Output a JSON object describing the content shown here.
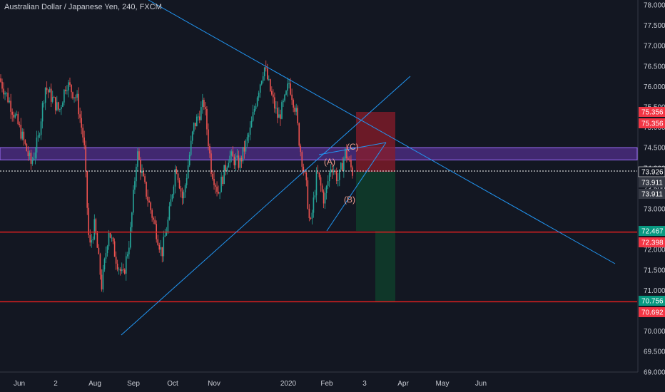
{
  "header": {
    "title": "Australian Dollar / Japanese Yen, 240, FXCM"
  },
  "chart_data": {
    "type": "candlestick",
    "title": "Australian Dollar / Japanese Yen, 240, FXCM",
    "ylim": [
      69.0,
      78.2
    ],
    "y_ticks": [
      "78.000",
      "77.500",
      "77.000",
      "76.500",
      "76.000",
      "75.500",
      "75.000",
      "74.500",
      "74.000",
      "73.500",
      "73.000",
      "72.500",
      "72.000",
      "71.500",
      "71.000",
      "70.500",
      "70.000",
      "69.500",
      "69.000"
    ],
    "x_labels": [
      "Jun",
      "2",
      "Aug",
      "Sep",
      "Oct",
      "Nov",
      "2020",
      "Feb",
      "3",
      "Apr",
      "May",
      "Jun"
    ],
    "price_path": [
      [
        0,
        76.2
      ],
      [
        0.03,
        75.6
      ],
      [
        0.06,
        74.9
      ],
      [
        0.09,
        74.1
      ],
      [
        0.11,
        74.7
      ],
      [
        0.13,
        76.0
      ],
      [
        0.17,
        75.4
      ],
      [
        0.19,
        76.1
      ],
      [
        0.22,
        75.7
      ],
      [
        0.24,
        74.6
      ],
      [
        0.255,
        72.0
      ],
      [
        0.27,
        72.6
      ],
      [
        0.29,
        71.1
      ],
      [
        0.31,
        72.5
      ],
      [
        0.33,
        71.8
      ],
      [
        0.35,
        71.3
      ],
      [
        0.37,
        72.3
      ],
      [
        0.39,
        74.4
      ],
      [
        0.41,
        73.6
      ],
      [
        0.44,
        72.6
      ],
      [
        0.46,
        71.9
      ],
      [
        0.48,
        72.8
      ],
      [
        0.5,
        74.1
      ],
      [
        0.52,
        73.2
      ],
      [
        0.55,
        75.0
      ],
      [
        0.58,
        75.6
      ],
      [
        0.6,
        74.0
      ],
      [
        0.62,
        73.4
      ],
      [
        0.65,
        74.3
      ],
      [
        0.68,
        74.1
      ],
      [
        0.71,
        74.9
      ],
      [
        0.73,
        75.8
      ],
      [
        0.75,
        76.5
      ],
      [
        0.77,
        75.8
      ],
      [
        0.79,
        75.2
      ],
      [
        0.81,
        75.7
      ],
      [
        0.82,
        76.1
      ],
      [
        0.84,
        75.4
      ],
      [
        0.85,
        74.6
      ],
      [
        0.87,
        73.5
      ],
      [
        0.88,
        72.5
      ],
      [
        0.9,
        73.9
      ],
      [
        0.92,
        73.2
      ],
      [
        0.94,
        74.1
      ],
      [
        0.96,
        73.7
      ],
      [
        0.98,
        74.4
      ],
      [
        1.0,
        73.9
      ]
    ],
    "price_lines": [
      {
        "value": 73.926,
        "label": "73.926",
        "style": "dotted",
        "color": "#ffffff"
      },
      {
        "value": 72.43,
        "label": "",
        "style": "solid",
        "color": "#e02020"
      },
      {
        "value": 70.72,
        "label": "",
        "style": "solid",
        "color": "#e02020"
      }
    ],
    "price_badges": [
      {
        "value": 75.356,
        "label": "75.356",
        "color": "#f23645"
      },
      {
        "value": 75.356,
        "label": "75.356",
        "color": "#f23645"
      },
      {
        "value": 73.926,
        "label": "73.926",
        "color": "#131722"
      },
      {
        "value": 73.911,
        "label": "73.911",
        "color": "#363a45"
      },
      {
        "value": 73.911,
        "label": "73.911",
        "color": "#363a45"
      },
      {
        "value": 72.467,
        "label": "72.467",
        "color": "#089981"
      },
      {
        "value": 72.398,
        "label": "72.398",
        "color": "#f23645"
      },
      {
        "value": 70.756,
        "label": "70.756",
        "color": "#089981"
      },
      {
        "value": 70.692,
        "label": "70.692",
        "color": "#f23645"
      }
    ],
    "zone": {
      "top": 74.5,
      "bottom": 74.2,
      "color": "#7b3fd0"
    },
    "wave_labels": [
      "(A)",
      "(B)",
      "(C)"
    ],
    "colors": {
      "up": "#26a69a",
      "down": "#ef5350",
      "trend": "#2196f3",
      "background": "#131722"
    }
  }
}
